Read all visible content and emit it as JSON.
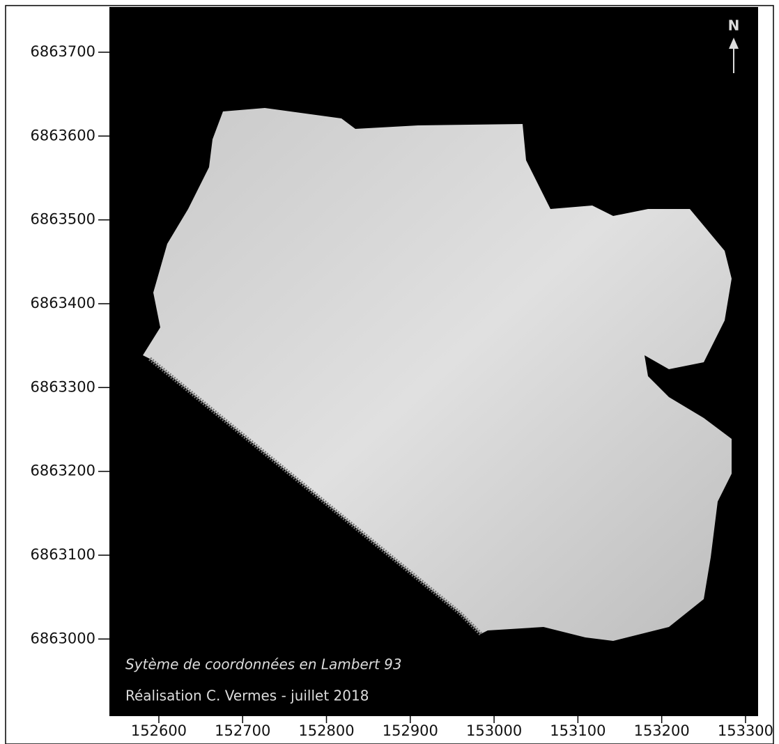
{
  "map": {
    "north_label": "N",
    "captions": [
      "Sytème de coordonnées en Lambert 93",
      "Réalisation  C. Vermes  - juillet 2018"
    ],
    "xlim": [
      152541,
      153315
    ],
    "ylim": [
      6862908,
      6863754
    ],
    "xticks": [
      152600,
      152700,
      152800,
      152900,
      153000,
      153100,
      153200,
      153300
    ],
    "yticks": [
      6863000,
      6863100,
      6863200,
      6863300,
      6863400,
      6863500,
      6863600,
      6863700
    ]
  }
}
